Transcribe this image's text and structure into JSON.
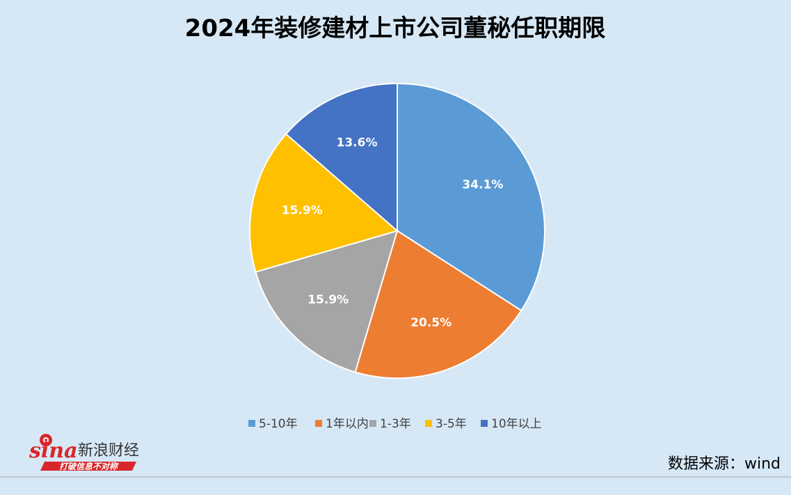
{
  "chart_data": {
    "type": "pie",
    "title": "2024年装修建材上市公司董秘任职期限",
    "categories": [
      "5-10年",
      "1年以内",
      "1-3年",
      "3-5年",
      "10年以上"
    ],
    "values": [
      34.1,
      20.5,
      15.9,
      15.9,
      13.6
    ],
    "data_labels": [
      "34.1%",
      "20.5%",
      "15.9%",
      "15.9%",
      "13.6%"
    ],
    "colors": [
      "#5b9bd5",
      "#ed7d31",
      "#a5a5a5",
      "#ffc000",
      "#4472c4"
    ],
    "start_angle": "12 o'clock",
    "direction": "clockwise",
    "legend_position": "bottom"
  },
  "source": "数据来源：wind",
  "logo": {
    "brand": "sina",
    "name": "新浪财经",
    "slogan": "打破信息不对称",
    "color": "#d9262a"
  }
}
